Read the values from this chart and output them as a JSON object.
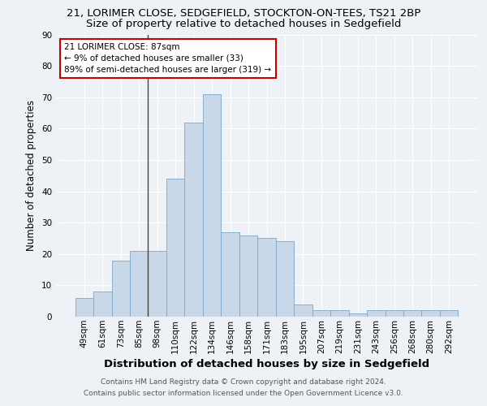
{
  "title1": "21, LORIMER CLOSE, SEDGEFIELD, STOCKTON-ON-TEES, TS21 2BP",
  "title2": "Size of property relative to detached houses in Sedgefield",
  "xlabel": "Distribution of detached houses by size in Sedgefield",
  "ylabel": "Number of detached properties",
  "categories": [
    "49sqm",
    "61sqm",
    "73sqm",
    "85sqm",
    "98sqm",
    "110sqm",
    "122sqm",
    "134sqm",
    "146sqm",
    "158sqm",
    "171sqm",
    "183sqm",
    "195sqm",
    "207sqm",
    "219sqm",
    "231sqm",
    "243sqm",
    "256sqm",
    "268sqm",
    "280sqm",
    "292sqm"
  ],
  "values": [
    6,
    8,
    18,
    21,
    21,
    44,
    62,
    71,
    27,
    26,
    25,
    24,
    4,
    2,
    2,
    1,
    2,
    2,
    2,
    2,
    2
  ],
  "bar_color": "#c8d8e8",
  "bar_edge_color": "#7aa8c8",
  "annotation_box_color": "#ffffff",
  "annotation_box_edge": "#cc0000",
  "annotation_line1": "21 LORIMER CLOSE: 87sqm",
  "annotation_line2": "← 9% of detached houses are smaller (33)",
  "annotation_line3": "89% of semi-detached houses are larger (319) →",
  "property_bar_index": 3,
  "footer1": "Contains HM Land Registry data © Crown copyright and database right 2024.",
  "footer2": "Contains public sector information licensed under the Open Government Licence v3.0.",
  "ylim": [
    0,
    90
  ],
  "yticks": [
    0,
    10,
    20,
    30,
    40,
    50,
    60,
    70,
    80,
    90
  ],
  "background_color": "#eef2f7",
  "grid_color": "#ffffff",
  "title1_fontsize": 9.5,
  "title2_fontsize": 9.5,
  "ylabel_fontsize": 8.5,
  "xlabel_fontsize": 9.5,
  "tick_fontsize": 7.5,
  "annotation_fontsize": 7.5,
  "footer_fontsize": 6.5
}
